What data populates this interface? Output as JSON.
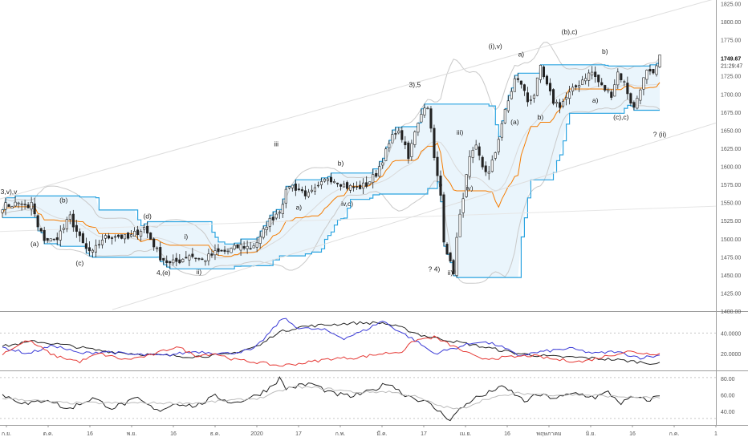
{
  "chart_data": [
    {
      "type": "candlestick",
      "title": "",
      "price_axis": {
        "ticks": [
          "1825.00",
          "1800.00",
          "1775.00",
          "1750.00",
          "1725.00",
          "1700.00",
          "1675.00",
          "1650.00",
          "1625.00",
          "1600.00",
          "1575.00",
          "1550.00",
          "1525.00",
          "1500.00",
          "1475.00",
          "1450.00",
          "1425.00",
          "1400.00"
        ],
        "ylim": [
          1400,
          1830
        ],
        "last_price": "1749.67",
        "countdown": "21:29:47"
      },
      "time_axis": {
        "labels": [
          "ก.ย.",
          "ต.ค.",
          "16",
          "พ.ย.",
          "16",
          "ธ.ค.",
          "2020",
          "17",
          "ก.พ.",
          "มี.ค.",
          "17",
          "เม.ย.",
          "16",
          "พฤษภาคม",
          "มิ.ย.",
          "16",
          "ก.ค.",
          "1"
        ],
        "bars": 205
      },
      "closes_keypoints": [
        [
          0,
          1545
        ],
        [
          6,
          1550
        ],
        [
          8,
          1540
        ],
        [
          9,
          1550
        ],
        [
          11,
          1515
        ],
        [
          13,
          1500
        ],
        [
          16,
          1497
        ],
        [
          19,
          1515
        ],
        [
          21,
          1530
        ],
        [
          24,
          1500
        ],
        [
          26,
          1485
        ],
        [
          28,
          1480
        ],
        [
          31,
          1500
        ],
        [
          35,
          1505
        ],
        [
          39,
          1500
        ],
        [
          42,
          1510
        ],
        [
          44,
          1515
        ],
        [
          46,
          1500
        ],
        [
          49,
          1475
        ],
        [
          52,
          1465
        ],
        [
          55,
          1470
        ],
        [
          58,
          1478
        ],
        [
          62,
          1470
        ],
        [
          66,
          1480
        ],
        [
          70,
          1483
        ],
        [
          74,
          1490
        ],
        [
          77,
          1488
        ],
        [
          80,
          1500
        ],
        [
          82,
          1520
        ],
        [
          86,
          1540
        ],
        [
          89,
          1575
        ],
        [
          92,
          1568
        ],
        [
          95,
          1560
        ],
        [
          98,
          1570
        ],
        [
          101,
          1585
        ],
        [
          104,
          1580
        ],
        [
          107,
          1572
        ],
        [
          110,
          1570
        ],
        [
          113,
          1575
        ],
        [
          116,
          1590
        ],
        [
          119,
          1620
        ],
        [
          122,
          1650
        ],
        [
          124,
          1640
        ],
        [
          126,
          1610
        ],
        [
          128,
          1650
        ],
        [
          130,
          1675
        ],
        [
          132,
          1685
        ],
        [
          133,
          1650
        ],
        [
          134,
          1610
        ],
        [
          136,
          1560
        ],
        [
          137,
          1500
        ],
        [
          139,
          1465
        ],
        [
          140,
          1455
        ],
        [
          141,
          1500
        ],
        [
          143,
          1560
        ],
        [
          145,
          1610
        ],
        [
          147,
          1625
        ],
        [
          149,
          1600
        ],
        [
          151,
          1590
        ],
        [
          153,
          1620
        ],
        [
          155,
          1660
        ],
        [
          157,
          1690
        ],
        [
          159,
          1720
        ],
        [
          161,
          1715
        ],
        [
          163,
          1690
        ],
        [
          165,
          1700
        ],
        [
          167,
          1735
        ],
        [
          169,
          1710
        ],
        [
          171,
          1690
        ],
        [
          173,
          1685
        ],
        [
          176,
          1700
        ],
        [
          178,
          1710
        ],
        [
          181,
          1725
        ],
        [
          183,
          1730
        ],
        [
          186,
          1710
        ],
        [
          189,
          1700
        ],
        [
          191,
          1730
        ],
        [
          193,
          1715
        ],
        [
          195,
          1690
        ],
        [
          196,
          1680
        ],
        [
          198,
          1710
        ],
        [
          200,
          1730
        ],
        [
          202,
          1725
        ],
        [
          204,
          1749.67
        ]
      ],
      "series": [
        {
          "name": "",
          "color": "#f57c00",
          "kind": "midline"
        },
        {
          "name": "",
          "color": "#29a3e0",
          "kind": "donchian"
        },
        {
          "name": "",
          "color": "#bdbdbd",
          "kind": "bollinger"
        }
      ],
      "annotations": [
        {
          "text": "3,v),v",
          "bar": 2,
          "price": 1562
        },
        {
          "text": "(a)",
          "bar": 10,
          "price": 1490
        },
        {
          "text": "(b)",
          "bar": 19,
          "price": 1550
        },
        {
          "text": "(c)",
          "bar": 24,
          "price": 1463
        },
        {
          "text": "(d)",
          "bar": 45,
          "price": 1528
        },
        {
          "text": "4,(e)",
          "bar": 50,
          "price": 1450
        },
        {
          "text": "i)",
          "bar": 57,
          "price": 1500
        },
        {
          "text": "ii)",
          "bar": 61,
          "price": 1451
        },
        {
          "text": "iii",
          "bar": 85,
          "price": 1628
        },
        {
          "text": "a)",
          "bar": 92,
          "price": 1540
        },
        {
          "text": "b)",
          "bar": 105,
          "price": 1601
        },
        {
          "text": "iv,c)",
          "bar": 107,
          "price": 1545
        },
        {
          "text": "3),5",
          "bar": 128,
          "price": 1710
        },
        {
          "text": "i)",
          "bar": 136,
          "price": 1572
        },
        {
          "text": "iii)",
          "bar": 142,
          "price": 1644
        },
        {
          "text": "iv)",
          "bar": 145,
          "price": 1567
        },
        {
          "text": "? 4)",
          "bar": 134,
          "price": 1455
        },
        {
          "text": "ii)",
          "bar": 139,
          "price": 1450
        },
        {
          "text": "(i),v)",
          "bar": 153,
          "price": 1763
        },
        {
          "text": "a)",
          "bar": 161,
          "price": 1752
        },
        {
          "text": "(a)",
          "bar": 159,
          "price": 1658
        },
        {
          "text": "b)",
          "bar": 167,
          "price": 1665
        },
        {
          "text": "(b),c)",
          "bar": 176,
          "price": 1783
        },
        {
          "text": "b)",
          "bar": 187,
          "price": 1756
        },
        {
          "text": "a)",
          "bar": 184,
          "price": 1688
        },
        {
          "text": "(c),c)",
          "bar": 192,
          "price": 1665
        },
        {
          "text": "? (ii)",
          "bar": 204,
          "price": 1641
        }
      ]
    },
    {
      "type": "line",
      "title": "",
      "yaxis_ticks": [
        "40.0000",
        "20.0000"
      ],
      "ylim": [
        5,
        60
      ],
      "series": [
        {
          "name": "",
          "color": "#222222",
          "keypoints": [
            [
              0,
              27
            ],
            [
              10,
              32
            ],
            [
              20,
              28
            ],
            [
              30,
              23
            ],
            [
              40,
              20
            ],
            [
              50,
              18
            ],
            [
              60,
              17
            ],
            [
              70,
              19
            ],
            [
              80,
              28
            ],
            [
              85,
              40
            ],
            [
              92,
              46
            ],
            [
              100,
              48
            ],
            [
              110,
              50
            ],
            [
              118,
              50
            ],
            [
              124,
              45
            ],
            [
              130,
              38
            ],
            [
              140,
              32
            ],
            [
              150,
              26
            ],
            [
              160,
              20
            ],
            [
              170,
              17
            ],
            [
              180,
              16
            ],
            [
              190,
              14
            ],
            [
              200,
              11
            ],
            [
              204,
              10
            ]
          ]
        },
        {
          "name": "",
          "color": "#3a3ad6",
          "keypoints": [
            [
              0,
              26
            ],
            [
              8,
              20
            ],
            [
              16,
              28
            ],
            [
              24,
              20
            ],
            [
              32,
              22
            ],
            [
              40,
              19
            ],
            [
              50,
              18
            ],
            [
              60,
              22
            ],
            [
              70,
              20
            ],
            [
              78,
              24
            ],
            [
              84,
              44
            ],
            [
              87,
              55
            ],
            [
              92,
              45
            ],
            [
              100,
              43
            ],
            [
              106,
              35
            ],
            [
              112,
              42
            ],
            [
              118,
              52
            ],
            [
              122,
              44
            ],
            [
              128,
              33
            ],
            [
              134,
              20
            ],
            [
              140,
              25
            ],
            [
              148,
              32
            ],
            [
              154,
              28
            ],
            [
              160,
              18
            ],
            [
              168,
              22
            ],
            [
              176,
              25
            ],
            [
              184,
              20
            ],
            [
              190,
              22
            ],
            [
              198,
              16
            ],
            [
              204,
              18
            ]
          ]
        },
        {
          "name": "",
          "color": "#e53935",
          "keypoints": [
            [
              0,
              20
            ],
            [
              8,
              33
            ],
            [
              16,
              18
            ],
            [
              24,
              12
            ],
            [
              30,
              20
            ],
            [
              38,
              14
            ],
            [
              46,
              18
            ],
            [
              54,
              27
            ],
            [
              60,
              18
            ],
            [
              66,
              20
            ],
            [
              72,
              14
            ],
            [
              80,
              11
            ],
            [
              86,
              8
            ],
            [
              94,
              11
            ],
            [
              102,
              15
            ],
            [
              110,
              16
            ],
            [
              118,
              20
            ],
            [
              124,
              22
            ],
            [
              128,
              33
            ],
            [
              134,
              36
            ],
            [
              140,
              27
            ],
            [
              148,
              15
            ],
            [
              156,
              16
            ],
            [
              164,
              18
            ],
            [
              172,
              14
            ],
            [
              180,
              12
            ],
            [
              188,
              18
            ],
            [
              194,
              22
            ],
            [
              200,
              20
            ],
            [
              204,
              20
            ]
          ]
        }
      ]
    },
    {
      "type": "line",
      "title": "",
      "yaxis_ticks": [
        "80.00",
        "60.00",
        "40.00"
      ],
      "ylim": [
        25,
        88
      ],
      "series": [
        {
          "name": "",
          "color": "#222222",
          "keypoints": [
            [
              0,
              60
            ],
            [
              8,
              48
            ],
            [
              14,
              55
            ],
            [
              20,
              42
            ],
            [
              28,
              56
            ],
            [
              34,
              44
            ],
            [
              42,
              55
            ],
            [
              48,
              40
            ],
            [
              54,
              50
            ],
            [
              60,
              46
            ],
            [
              66,
              58
            ],
            [
              72,
              50
            ],
            [
              78,
              58
            ],
            [
              82,
              66
            ],
            [
              86,
              80
            ],
            [
              88,
              68
            ],
            [
              96,
              74
            ],
            [
              102,
              62
            ],
            [
              108,
              58
            ],
            [
              114,
              64
            ],
            [
              120,
              75
            ],
            [
              124,
              62
            ],
            [
              128,
              56
            ],
            [
              132,
              50
            ],
            [
              136,
              38
            ],
            [
              139,
              30
            ],
            [
              142,
              42
            ],
            [
              146,
              55
            ],
            [
              150,
              60
            ],
            [
              154,
              70
            ],
            [
              158,
              64
            ],
            [
              162,
              52
            ],
            [
              166,
              60
            ],
            [
              172,
              56
            ],
            [
              178,
              62
            ],
            [
              184,
              57
            ],
            [
              188,
              63
            ],
            [
              192,
              50
            ],
            [
              196,
              57
            ],
            [
              200,
              53
            ],
            [
              204,
              59
            ]
          ]
        },
        {
          "name": "",
          "color": "#bbbbbb",
          "keypoints": [
            [
              0,
              56
            ],
            [
              20,
              50
            ],
            [
              40,
              50
            ],
            [
              60,
              50
            ],
            [
              80,
              56
            ],
            [
              90,
              70
            ],
            [
              100,
              68
            ],
            [
              110,
              63
            ],
            [
              120,
              64
            ],
            [
              128,
              58
            ],
            [
              136,
              46
            ],
            [
              142,
              42
            ],
            [
              150,
              55
            ],
            [
              160,
              62
            ],
            [
              170,
              60
            ],
            [
              180,
              60
            ],
            [
              190,
              58
            ],
            [
              204,
              56
            ]
          ]
        }
      ]
    }
  ]
}
